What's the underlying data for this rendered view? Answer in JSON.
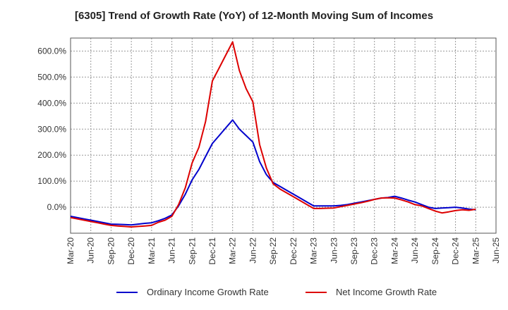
{
  "chart_data": {
    "type": "line",
    "title": "[6305]  Trend of Growth Rate (YoY) of 12-Month Moving Sum of Incomes",
    "xlabel": "",
    "ylabel": "",
    "ylim": [
      -100,
      650
    ],
    "grid": true,
    "legend_position": "bottom",
    "y_ticks": [
      {
        "value": 0,
        "label": "0.0%"
      },
      {
        "value": 100,
        "label": "100.0%"
      },
      {
        "value": 200,
        "label": "200.0%"
      },
      {
        "value": 300,
        "label": "300.0%"
      },
      {
        "value": 400,
        "label": "400.0%"
      },
      {
        "value": 500,
        "label": "500.0%"
      },
      {
        "value": 600,
        "label": "600.0%"
      }
    ],
    "x_ticks": [
      "Mar-20",
      "Jun-20",
      "Sep-20",
      "Dec-20",
      "Mar-21",
      "Jun-21",
      "Sep-21",
      "Dec-21",
      "Mar-22",
      "Jun-22",
      "Sep-22",
      "Dec-22",
      "Mar-23",
      "Jun-23",
      "Sep-23",
      "Dec-23",
      "Mar-24",
      "Jun-24",
      "Sep-24",
      "Dec-24",
      "Mar-25",
      "Jun-25"
    ],
    "x": [
      "Mar-20",
      "Apr-20",
      "May-20",
      "Jun-20",
      "Jul-20",
      "Aug-20",
      "Sep-20",
      "Oct-20",
      "Nov-20",
      "Dec-20",
      "Jan-21",
      "Feb-21",
      "Mar-21",
      "Apr-21",
      "May-21",
      "Jun-21",
      "Jul-21",
      "Aug-21",
      "Sep-21",
      "Oct-21",
      "Nov-21",
      "Dec-21",
      "Jan-22",
      "Feb-22",
      "Mar-22",
      "Apr-22",
      "May-22",
      "Jun-22",
      "Jul-22",
      "Aug-22",
      "Sep-22",
      "Oct-22",
      "Nov-22",
      "Dec-22",
      "Jan-23",
      "Feb-23",
      "Mar-23",
      "Apr-23",
      "May-23",
      "Jun-23",
      "Jul-23",
      "Aug-23",
      "Sep-23",
      "Oct-23",
      "Nov-23",
      "Dec-23",
      "Jan-24",
      "Feb-24",
      "Mar-24",
      "Apr-24",
      "May-24",
      "Jun-24",
      "Jul-24",
      "Aug-24",
      "Sep-24",
      "Oct-24",
      "Nov-24",
      "Dec-24",
      "Jan-25",
      "Feb-25",
      "Mar-25"
    ],
    "series": [
      {
        "name": "Ordinary Income Growth Rate",
        "color": "#0000cc",
        "values": [
          -35,
          -40,
          -45,
          -50,
          -55,
          -60,
          -65,
          -66,
          -67,
          -68,
          -65,
          -62,
          -60,
          -52,
          -43,
          -30,
          5,
          50,
          105,
          145,
          195,
          245,
          275,
          305,
          335,
          300,
          275,
          250,
          175,
          125,
          95,
          80,
          65,
          50,
          35,
          20,
          5,
          5,
          5,
          5,
          7,
          10,
          15,
          20,
          25,
          30,
          35,
          37,
          42,
          35,
          27,
          20,
          10,
          0,
          -5,
          -3,
          -2,
          0,
          -3,
          -7,
          -10
        ]
      },
      {
        "name": "Net Income Growth Rate",
        "color": "#dd0000",
        "values": [
          -40,
          -45,
          -50,
          -55,
          -60,
          -65,
          -70,
          -72,
          -74,
          -76,
          -74,
          -72,
          -70,
          -58,
          -50,
          -35,
          10,
          75,
          170,
          230,
          330,
          485,
          535,
          585,
          635,
          525,
          455,
          405,
          240,
          150,
          90,
          70,
          55,
          40,
          25,
          10,
          -5,
          -5,
          -4,
          -3,
          2,
          7,
          12,
          17,
          23,
          30,
          35,
          36,
          35,
          28,
          20,
          10,
          5,
          -5,
          -15,
          -22,
          -18,
          -13,
          -10,
          -12,
          -8
        ]
      }
    ]
  }
}
